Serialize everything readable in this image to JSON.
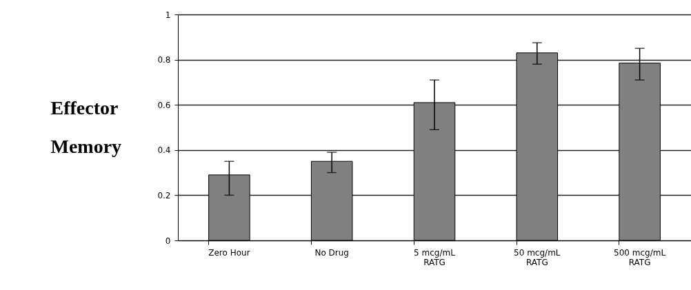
{
  "chart_data": {
    "type": "bar",
    "ylabel": "Effector Memory",
    "categories": [
      "Zero Hour",
      "No Drug",
      "5 mcg/mL RATG",
      "50 mcg/mL RATG",
      "500 mcg/mL RATG"
    ],
    "values": [
      0.29,
      0.35,
      0.61,
      0.83,
      0.785
    ],
    "errors": [
      [
        0.2,
        0.35
      ],
      [
        0.3,
        0.39
      ],
      [
        0.49,
        0.71
      ],
      [
        0.78,
        0.875
      ],
      [
        0.71,
        0.85
      ]
    ],
    "color": "#808080",
    "ylim": [
      0,
      1
    ],
    "yticks": [
      0,
      0.2,
      0.4,
      0.6,
      0.8,
      1
    ],
    "grid": "y"
  }
}
